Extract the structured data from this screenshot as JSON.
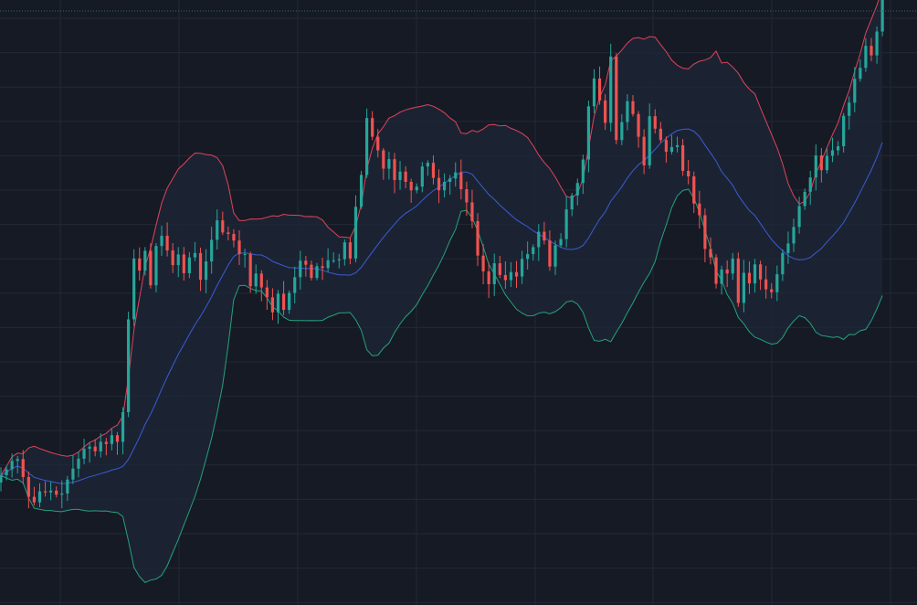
{
  "chart_data": {
    "type": "candlestick",
    "indicator": "bollinger-bands",
    "x_range": [
      0,
      162
    ],
    "y_range": [
      -5,
      160
    ],
    "grid": true,
    "colors": {
      "background": "#161a25",
      "grid": "#232836",
      "up_candle": "#26a69a",
      "down_candle": "#ef5350",
      "band_upper": "#e0435a",
      "band_middle": "#3b5bd6",
      "band_lower": "#26a17b",
      "band_fill": "#1c2636",
      "top_dotted_line": "#2e6f6f"
    },
    "close_values": [
      30.4,
      32.0,
      34.3,
      34.8,
      29.9,
      24.5,
      23.0,
      26.0,
      25.7,
      26.2,
      25.1,
      25.4,
      29.2,
      32.2,
      34.9,
      37.6,
      38.2,
      36.9,
      39.5,
      38.9,
      41.3,
      39.5,
      47.6,
      72.9,
      89.5,
      86.2,
      91.6,
      82.2,
      92.9,
      95.7,
      91.7,
      87.7,
      90.6,
      85.5,
      89.8,
      91.0,
      83.7,
      88.7,
      94.6,
      99.9,
      96.6,
      96.2,
      94.4,
      90.7,
      90.7,
      81.9,
      85.4,
      81.6,
      78.9,
      74.8,
      79.9,
      75.5,
      80.1,
      84.4,
      88.9,
      87.8,
      84.2,
      87.4,
      86.9,
      89.0,
      89.0,
      89.3,
      93.9,
      89.5,
      103.6,
      112.3,
      127.8,
      122.7,
      119.0,
      114.0,
      116.6,
      110.9,
      113.2,
      110.4,
      108.1,
      109.1,
      114.6,
      115.6,
      111.5,
      108.1,
      110.4,
      111.3,
      113.0,
      108.4,
      104.8,
      99.7,
      90.3,
      86.0,
      82.5,
      88.2,
      85.0,
      83.6,
      85.8,
      84.6,
      89.4,
      90.7,
      92.6,
      96.8,
      94.4,
      87.3,
      93.1,
      94.8,
      102.9,
      106.7,
      110.1,
      116.5,
      131.0,
      138.6,
      132.6,
      126.5,
      144.6,
      121.8,
      126.7,
      132.4,
      128.9,
      122.7,
      114.9,
      128.3,
      124.9,
      121.8,
      118.6,
      119.9,
      120.4,
      113.4,
      111.9,
      104.5,
      101.3,
      92.1,
      89.8,
      82.6,
      86.5,
      85.4,
      89.5,
      77.4,
      85.6,
      82.7,
      87.9,
      83.8,
      81.1,
      80.3,
      85.2,
      91.0,
      93.6,
      98.1,
      103.8,
      107.7,
      111.6,
      117.6,
      113.6,
      117.5,
      119.0,
      120.1,
      128.4,
      132.0,
      138.5,
      141.5,
      147.5,
      144.9,
      151.4,
      160.2
    ]
  }
}
